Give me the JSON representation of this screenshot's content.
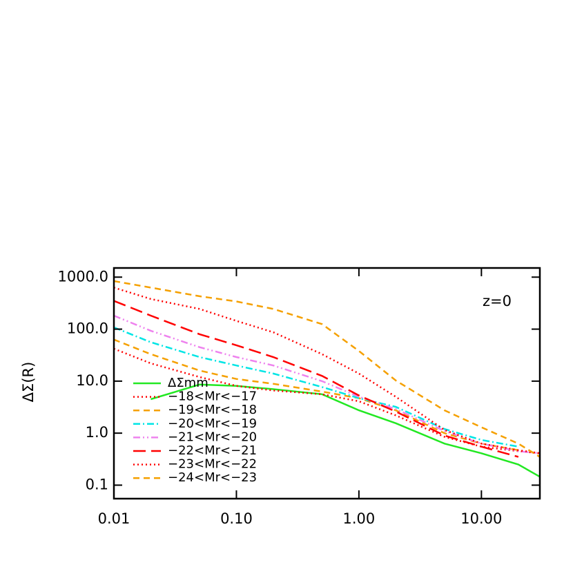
{
  "chart_data": {
    "type": "line",
    "xscale": "log",
    "yscale": "log",
    "y_label": "ΔΣ(R)",
    "annotation": "z=0",
    "legend": "lower left",
    "x": [
      0.01,
      0.02,
      0.05,
      0.1,
      0.2,
      0.5,
      1,
      2,
      5,
      10,
      20,
      30
    ],
    "series": [
      {
        "name": "ΔΣmm",
        "color": "#22e822",
        "dash": "solid",
        "values": [
          null,
          4.5,
          8.6,
          8.1,
          7.0,
          5.6,
          2.75,
          1.55,
          0.63,
          0.41,
          0.25,
          0.145
        ]
      },
      {
        "name": "−18<Mr<−17",
        "color": "#ff0000",
        "dash": "dotted",
        "values": [
          42,
          22,
          12,
          8.1,
          6.6,
          5.6,
          4.1,
          2.2,
          0.85,
          0.55,
          0.45,
          0.41
        ]
      },
      {
        "name": "−19<Mr<−18",
        "color": "#f5a000",
        "dash": "dashed",
        "values": [
          63,
          33,
          16,
          11,
          8.9,
          6.3,
          4.7,
          2.75,
          1.0,
          0.63,
          0.47,
          null
        ]
      },
      {
        "name": "−20<Mr<−19",
        "color": "#00e5e5",
        "dash": "dashdot",
        "values": [
          108,
          56,
          29,
          20,
          14,
          7.7,
          4.7,
          3.2,
          1.2,
          0.74,
          0.55,
          null
        ]
      },
      {
        "name": "−21<Mr<−20",
        "color": "#ee82ee",
        "dash": "dashdotdot",
        "values": [
          182,
          93,
          45,
          29,
          20,
          10,
          5,
          2.9,
          1.1,
          0.63,
          0.45,
          0.41
        ]
      },
      {
        "name": "−22<Mr<−21",
        "color": "#ff0000",
        "dash": "longdash",
        "values": [
          350,
          182,
          80,
          49,
          29,
          12.6,
          5.3,
          2.6,
          0.9,
          0.55,
          0.35,
          null
        ]
      },
      {
        "name": "−23<Mr<−22",
        "color": "#ff0000",
        "dash": "dotted",
        "values": [
          630,
          380,
          245,
          144,
          87,
          33,
          14,
          5,
          1.15,
          0.63,
          0.47,
          0.41
        ]
      },
      {
        "name": "−24<Mr<−23",
        "color": "#f5a000",
        "dash": "dashed",
        "values": [
          840,
          630,
          430,
          340,
          245,
          125,
          38,
          10.3,
          2.75,
          1.3,
          0.63,
          0.35
        ]
      }
    ],
    "xlim": [
      0.01,
      30
    ],
    "ylim": [
      0.055,
      1500
    ],
    "xticks": [
      {
        "value": 0.01,
        "label": "0.01"
      },
      {
        "value": 0.1,
        "label": "0.10"
      },
      {
        "value": 1,
        "label": "1.00"
      },
      {
        "value": 10,
        "label": "10.00"
      }
    ],
    "yticks": [
      {
        "value": 1000,
        "label": "1000.0"
      },
      {
        "value": 100,
        "label": "100.0"
      },
      {
        "value": 10,
        "label": "10.0"
      },
      {
        "value": 1,
        "label": "1.0"
      },
      0.1
    ]
  }
}
